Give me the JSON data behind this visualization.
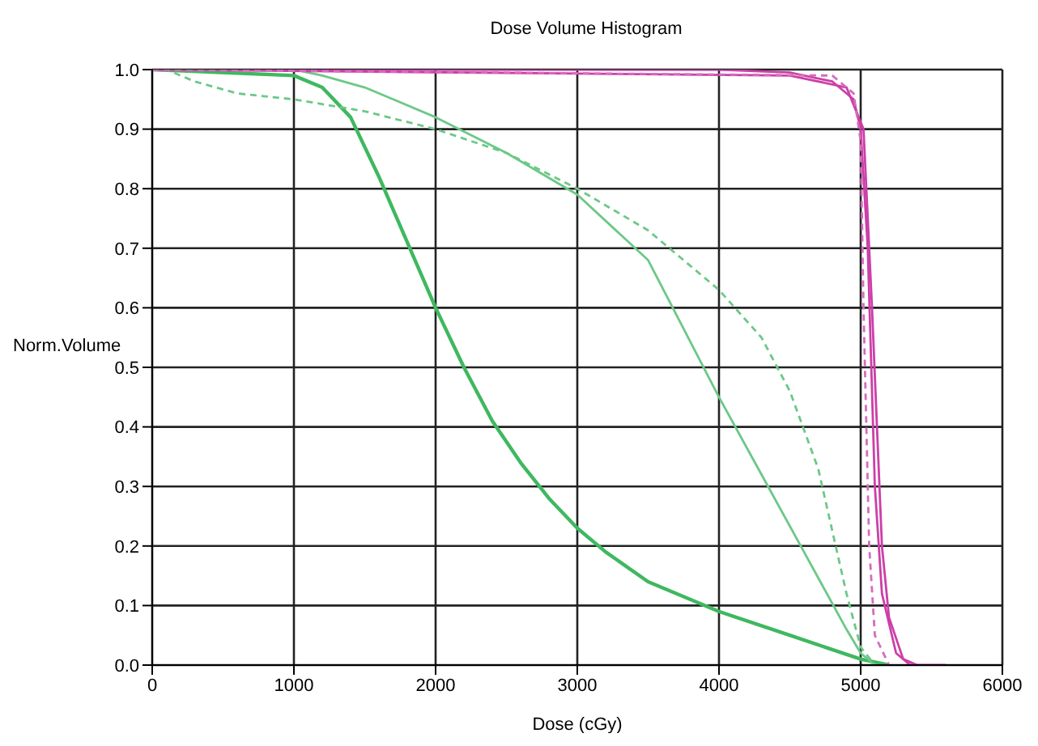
{
  "chart_data": {
    "type": "line",
    "title": "Dose Volume Histogram",
    "xlabel": "Dose (cGy)",
    "ylabel": "Norm.Volume",
    "xlim": [
      0,
      6000
    ],
    "xticks": [
      0,
      1000,
      2000,
      3000,
      4000,
      5000,
      6000
    ],
    "ylim": [
      0,
      1
    ],
    "yticks": [
      {
        "value": 0,
        "label": "0.0"
      },
      0.1,
      0.2,
      0.3,
      0.4,
      0.5,
      0.6,
      0.7,
      0.8,
      0.9,
      {
        "value": 1,
        "label": "1.0"
      }
    ],
    "grid": true,
    "marker": "none",
    "series": [
      {
        "color": "#3fb860",
        "line_style": "solid",
        "x": [
          0,
          1000,
          1200,
          1400,
          1600,
          1800,
          2000,
          2200,
          2400,
          2600,
          2800,
          3000,
          3200,
          3500,
          4000,
          4500,
          5000,
          5200
        ],
        "values": [
          1,
          0.99,
          0.97,
          0.92,
          0.82,
          0.71,
          0.6,
          0.5,
          0.41,
          0.34,
          0.28,
          0.23,
          0.19,
          0.14,
          0.09,
          0.05,
          0.01,
          0
        ]
      },
      {
        "color": "#6cc887",
        "line_style": "solid",
        "x": [
          0,
          1000,
          1200,
          1500,
          2000,
          2500,
          3000,
          3500,
          4000,
          4300,
          4600,
          4900,
          5000,
          5100
        ],
        "values": [
          1,
          1,
          0.99,
          0.97,
          0.92,
          0.86,
          0.79,
          0.68,
          0.45,
          0.32,
          0.19,
          0.06,
          0.02,
          0
        ]
      },
      {
        "color": "#6cc887",
        "line_style": "dashed",
        "x": [
          0,
          100,
          300,
          600,
          1000,
          1500,
          2000,
          2500,
          3000,
          3500,
          4000,
          4300,
          4500,
          4700,
          4900,
          5000,
          5100
        ],
        "values": [
          1,
          1,
          0.98,
          0.96,
          0.95,
          0.93,
          0.9,
          0.86,
          0.8,
          0.73,
          0.63,
          0.55,
          0.46,
          0.33,
          0.12,
          0.03,
          0
        ]
      },
      {
        "color": "#cc3fa8",
        "line_style": "solid",
        "x": [
          0,
          4000,
          4500,
          4800,
          4950,
          5000,
          5050,
          5100,
          5150,
          5250,
          5350,
          5600
        ],
        "values": [
          1,
          1,
          0.995,
          0.98,
          0.95,
          0.9,
          0.7,
          0.3,
          0.12,
          0.02,
          0,
          0
        ]
      },
      {
        "color": "#cc3fa8",
        "line_style": "solid",
        "x": [
          0,
          4500,
          4900,
          5020,
          5080,
          5150,
          5200,
          5300,
          5400
        ],
        "values": [
          1,
          0.99,
          0.97,
          0.9,
          0.6,
          0.2,
          0.08,
          0.01,
          0
        ]
      },
      {
        "color": "#d66cbc",
        "line_style": "dashed",
        "x": [
          0,
          4800,
          4950,
          5000,
          5020,
          5060,
          5100,
          5200
        ],
        "values": [
          1,
          0.99,
          0.96,
          0.88,
          0.6,
          0.2,
          0.05,
          0
        ]
      }
    ]
  }
}
